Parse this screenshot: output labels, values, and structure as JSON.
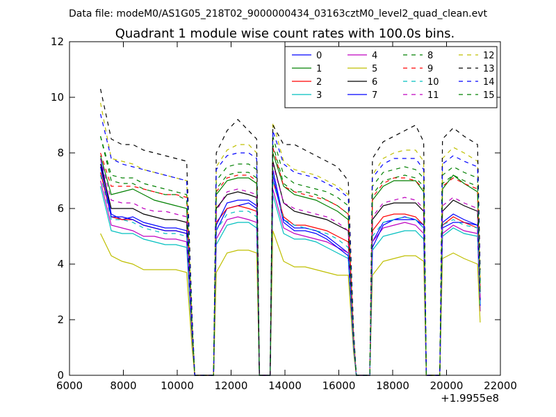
{
  "suptitle": "Data file: modeM0/AS1G05_218T02_9000000434_03163cztM0_level2_quad_clean.evt",
  "chart_data": {
    "type": "line",
    "title": "Quadrant 1 module wise count rates with 100.0s bins.",
    "xlabel": "",
    "ylabel": "",
    "xlim": [
      6000,
      22000
    ],
    "ylim": [
      0,
      12
    ],
    "x_offset_label": "+1.9955e8",
    "xticks": [
      6000,
      8000,
      10000,
      12000,
      14000,
      16000,
      18000,
      20000,
      22000
    ],
    "xtick_labels": [
      "6000",
      "8000",
      "10000",
      "12000",
      "14000",
      "16000",
      "18000",
      "20000",
      "22000"
    ],
    "yticks": [
      0,
      2,
      4,
      6,
      8,
      10,
      12
    ],
    "ytick_labels": [
      "0",
      "2",
      "4",
      "6",
      "8",
      "10",
      "12"
    ],
    "grid": false,
    "legend_position": "top-right",
    "legend_columns": 4,
    "x": [
      7150,
      7550,
      7950,
      8350,
      8750,
      9150,
      9550,
      9950,
      10350,
      10550,
      10650,
      11350,
      11450,
      11850,
      12250,
      12650,
      12950,
      13050,
      13450,
      13550,
      13950,
      14350,
      14750,
      15150,
      15550,
      15950,
      16350,
      16550,
      16650,
      17150,
      17250,
      17650,
      18050,
      18450,
      18850,
      19150,
      19250,
      19750,
      19850,
      20250,
      20650,
      21150,
      21250
    ],
    "series": [
      {
        "name": "0",
        "color": "#0000ff",
        "style": "solid",
        "values": [
          7.8,
          5.8,
          5.6,
          5.7,
          5.5,
          5.4,
          5.3,
          5.3,
          5.2,
          1.5,
          0,
          0,
          5.2,
          6.0,
          6.1,
          6.2,
          6.0,
          0,
          0,
          7.4,
          5.6,
          5.3,
          5.3,
          5.2,
          5.0,
          4.7,
          4.4,
          1.0,
          0,
          0,
          4.8,
          5.5,
          5.6,
          5.6,
          5.6,
          5.3,
          0,
          0,
          5.3,
          5.5,
          5.5,
          5.4,
          2.5
        ]
      },
      {
        "name": "1",
        "color": "#008000",
        "style": "solid",
        "values": [
          7.9,
          6.5,
          6.6,
          6.7,
          6.5,
          6.3,
          6.2,
          6.1,
          6.0,
          1.7,
          0,
          0,
          6.5,
          7.0,
          7.1,
          7.1,
          6.9,
          0,
          0,
          8.0,
          6.8,
          6.5,
          6.4,
          6.3,
          6.1,
          5.9,
          5.6,
          1.3,
          0,
          0,
          6.3,
          6.8,
          7.0,
          7.0,
          7.0,
          6.6,
          0,
          0,
          6.7,
          7.2,
          6.9,
          6.6,
          3.0
        ]
      },
      {
        "name": "2",
        "color": "#ff0000",
        "style": "solid",
        "values": [
          7.3,
          5.7,
          5.6,
          5.6,
          5.4,
          5.3,
          5.2,
          5.2,
          5.1,
          1.5,
          0,
          0,
          5.5,
          6.0,
          6.1,
          6.0,
          5.9,
          0,
          0,
          7.0,
          5.7,
          5.4,
          5.4,
          5.3,
          5.2,
          5.0,
          4.8,
          1.1,
          0,
          0,
          5.2,
          5.7,
          5.8,
          5.8,
          5.7,
          5.4,
          0,
          0,
          5.4,
          5.7,
          5.5,
          5.3,
          2.5
        ]
      },
      {
        "name": "3",
        "color": "#00bfbf",
        "style": "solid",
        "values": [
          6.8,
          5.2,
          5.1,
          5.1,
          4.9,
          4.8,
          4.7,
          4.7,
          4.6,
          1.3,
          0,
          0,
          4.7,
          5.4,
          5.5,
          5.5,
          5.3,
          0,
          0,
          6.5,
          5.1,
          4.9,
          4.9,
          4.8,
          4.6,
          4.4,
          4.2,
          0.9,
          0,
          0,
          4.5,
          5.0,
          5.1,
          5.2,
          5.2,
          4.9,
          0,
          0,
          5.0,
          5.3,
          5.1,
          5.0,
          2.3
        ]
      },
      {
        "name": "4",
        "color": "#bf00bf",
        "style": "solid",
        "values": [
          7.0,
          5.4,
          5.3,
          5.2,
          5.0,
          5.0,
          4.9,
          4.9,
          4.8,
          1.4,
          0,
          0,
          4.9,
          5.6,
          5.7,
          5.6,
          5.5,
          0,
          0,
          6.7,
          5.3,
          5.1,
          5.0,
          4.9,
          4.8,
          4.6,
          4.4,
          1.0,
          0,
          0,
          4.8,
          5.3,
          5.4,
          5.5,
          5.4,
          5.1,
          0,
          0,
          5.1,
          5.4,
          5.2,
          5.1,
          2.3
        ]
      },
      {
        "name": "5",
        "color": "#bfbf00",
        "style": "solid",
        "values": [
          5.1,
          4.3,
          4.1,
          4.0,
          3.8,
          3.8,
          3.8,
          3.8,
          3.7,
          1.0,
          0,
          0,
          3.7,
          4.4,
          4.5,
          4.5,
          4.4,
          0,
          0,
          5.2,
          4.1,
          3.9,
          3.9,
          3.8,
          3.7,
          3.6,
          3.6,
          0.8,
          0,
          0,
          3.6,
          4.1,
          4.2,
          4.3,
          4.3,
          4.1,
          0,
          0,
          4.2,
          4.4,
          4.2,
          4.0,
          1.9
        ]
      },
      {
        "name": "6",
        "color": "#000000",
        "style": "solid",
        "values": [
          7.6,
          6.0,
          6.0,
          6.0,
          5.8,
          5.7,
          5.6,
          5.6,
          5.5,
          1.6,
          0,
          0,
          6.0,
          6.5,
          6.6,
          6.5,
          6.4,
          0,
          0,
          7.7,
          6.2,
          5.9,
          5.8,
          5.7,
          5.6,
          5.4,
          5.2,
          1.2,
          0,
          0,
          5.6,
          6.1,
          6.2,
          6.2,
          6.2,
          5.9,
          0,
          0,
          5.9,
          6.3,
          6.1,
          5.9,
          2.7
        ]
      },
      {
        "name": "7",
        "color": "#0000ff",
        "style": "solid",
        "values": [
          7.5,
          5.7,
          5.7,
          5.6,
          5.4,
          5.3,
          5.2,
          5.2,
          5.1,
          1.5,
          0,
          0,
          5.4,
          6.2,
          6.3,
          6.3,
          6.1,
          0,
          0,
          7.2,
          5.5,
          5.2,
          5.2,
          5.1,
          4.9,
          4.6,
          4.3,
          1.0,
          0,
          0,
          4.6,
          5.4,
          5.6,
          5.7,
          5.6,
          5.4,
          0,
          0,
          5.5,
          5.8,
          5.6,
          5.4,
          2.5
        ]
      },
      {
        "name": "8",
        "color": "#008000",
        "style": "dashed",
        "values": [
          8.6,
          7.2,
          7.1,
          7.1,
          6.9,
          6.8,
          6.7,
          6.6,
          6.5,
          1.9,
          0,
          0,
          7.0,
          7.5,
          7.6,
          7.6,
          7.4,
          0,
          0,
          8.6,
          7.2,
          6.9,
          6.8,
          6.7,
          6.6,
          6.4,
          6.1,
          1.4,
          0,
          0,
          6.8,
          7.3,
          7.4,
          7.5,
          7.4,
          7.1,
          0,
          0,
          7.2,
          7.5,
          7.3,
          7.1,
          3.2
        ]
      },
      {
        "name": "9",
        "color": "#ff0000",
        "style": "dashed",
        "values": [
          8.0,
          6.8,
          6.8,
          6.8,
          6.7,
          6.6,
          6.5,
          6.5,
          6.4,
          1.8,
          0,
          0,
          6.6,
          7.1,
          7.2,
          7.2,
          7.0,
          0,
          0,
          8.2,
          6.8,
          6.6,
          6.5,
          6.4,
          6.3,
          6.1,
          5.8,
          1.3,
          0,
          0,
          6.4,
          6.9,
          7.1,
          7.1,
          7.0,
          6.7,
          0,
          0,
          6.8,
          7.1,
          6.9,
          6.7,
          3.1
        ]
      },
      {
        "name": "10",
        "color": "#00bfbf",
        "style": "dashed",
        "values": [
          7.2,
          5.6,
          5.6,
          5.5,
          5.3,
          5.2,
          5.1,
          5.1,
          5.0,
          1.4,
          0,
          0,
          5.2,
          5.8,
          5.9,
          5.9,
          5.7,
          0,
          0,
          7.0,
          5.6,
          5.4,
          5.3,
          5.2,
          5.1,
          4.9,
          4.6,
          1.0,
          0,
          0,
          5.0,
          5.5,
          5.6,
          5.7,
          5.6,
          5.3,
          0,
          0,
          5.4,
          5.6,
          5.4,
          5.3,
          2.4
        ]
      },
      {
        "name": "11",
        "color": "#bf00bf",
        "style": "dashed",
        "values": [
          7.8,
          6.3,
          6.2,
          6.2,
          6.0,
          5.9,
          5.9,
          5.8,
          5.7,
          1.6,
          0,
          0,
          5.9,
          6.6,
          6.7,
          6.6,
          6.5,
          0,
          0,
          7.6,
          6.2,
          6.0,
          5.9,
          5.8,
          5.7,
          5.5,
          5.2,
          1.2,
          0,
          0,
          5.7,
          6.2,
          6.3,
          6.4,
          6.3,
          6.0,
          0,
          0,
          6.1,
          6.4,
          6.2,
          6.0,
          2.7
        ]
      },
      {
        "name": "12",
        "color": "#bfbf00",
        "style": "dashed",
        "values": [
          9.8,
          7.8,
          7.7,
          7.6,
          7.4,
          7.3,
          7.2,
          7.1,
          7.0,
          2.0,
          0,
          0,
          7.5,
          8.1,
          8.3,
          8.3,
          8.0,
          0,
          0,
          9.1,
          7.7,
          7.4,
          7.3,
          7.2,
          7.0,
          6.8,
          6.5,
          1.5,
          0,
          0,
          7.2,
          7.8,
          8.0,
          8.1,
          8.1,
          7.7,
          0,
          0,
          7.8,
          8.2,
          8.0,
          7.7,
          3.5
        ]
      },
      {
        "name": "13",
        "color": "#000000",
        "style": "dashed",
        "values": [
          10.3,
          8.5,
          8.3,
          8.3,
          8.1,
          8.0,
          7.9,
          7.8,
          7.7,
          2.2,
          0,
          0,
          8.0,
          8.8,
          9.2,
          8.8,
          8.5,
          0,
          0,
          9.0,
          8.3,
          8.3,
          8.1,
          7.9,
          7.7,
          7.5,
          7.0,
          1.6,
          0,
          0,
          7.8,
          8.4,
          8.6,
          8.8,
          9.0,
          8.4,
          0,
          0,
          8.5,
          8.9,
          8.6,
          8.3,
          3.8
        ]
      },
      {
        "name": "14",
        "color": "#0000ff",
        "style": "dashed",
        "values": [
          9.4,
          7.8,
          7.6,
          7.5,
          7.4,
          7.3,
          7.2,
          7.1,
          7.0,
          2.0,
          0,
          0,
          7.4,
          7.9,
          8.0,
          8.0,
          7.8,
          0,
          0,
          8.8,
          7.6,
          7.3,
          7.2,
          7.1,
          6.9,
          6.7,
          6.4,
          1.5,
          0,
          0,
          7.1,
          7.6,
          7.8,
          7.8,
          7.8,
          7.4,
          0,
          0,
          7.6,
          7.9,
          7.7,
          7.5,
          3.4
        ]
      },
      {
        "name": "15",
        "color": "#008000",
        "style": "dashed",
        "values": [
          8.6,
          7.0,
          6.9,
          6.9,
          6.7,
          6.6,
          6.5,
          6.5,
          6.3,
          1.8,
          0,
          0,
          6.7,
          7.2,
          7.3,
          7.3,
          7.1,
          0,
          0,
          8.3,
          6.9,
          6.6,
          6.6,
          6.5,
          6.3,
          6.1,
          5.8,
          1.3,
          0,
          0,
          6.5,
          7.0,
          7.1,
          7.2,
          7.1,
          6.8,
          0,
          0,
          6.9,
          7.2,
          7.0,
          6.8,
          3.1
        ]
      }
    ]
  }
}
